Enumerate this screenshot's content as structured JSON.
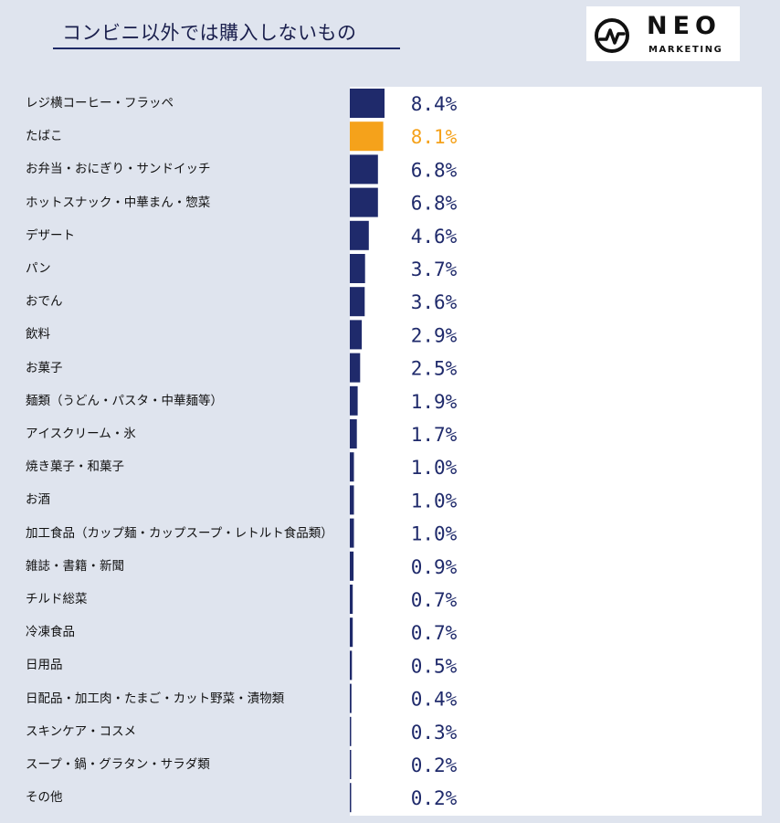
{
  "title": "コンビニ以外では購入しないもの",
  "logo": {
    "primary": "NEO",
    "secondary": "MARKETING"
  },
  "colors": {
    "bar": "#1f2a6b",
    "highlight": "#f5a21b",
    "label": "#1f2a6b",
    "highlight_label": "#f5a21b"
  },
  "chart_data": {
    "type": "bar",
    "orientation": "horizontal",
    "title": "コンビニ以外では購入しないもの",
    "value_suffix": "%",
    "highlight_index": 1,
    "xlim": [
      0,
      8.4
    ],
    "categories": [
      "レジ横コーヒー・フラッペ",
      "たばこ",
      "お弁当・おにぎり・サンドイッチ",
      "ホットスナック・中華まん・惣菜",
      "デザート",
      "パン",
      "おでん",
      "飲料",
      "お菓子",
      "麺類（うどん・パスタ・中華麺等）",
      "アイスクリーム・氷",
      "焼き菓子・和菓子",
      "お酒",
      "加工食品（カップ麺・カップスープ・レトルト食品類）",
      "雑誌・書籍・新聞",
      "チルド総菜",
      "冷凍食品",
      "日用品",
      "日配品・加工肉・たまご・カット野菜・漬物類",
      "スキンケア・コスメ",
      "スープ・鍋・グラタン・サラダ類",
      "その他"
    ],
    "values": [
      8.4,
      8.1,
      6.8,
      6.8,
      4.6,
      3.7,
      3.6,
      2.9,
      2.5,
      1.9,
      1.7,
      1.0,
      1.0,
      1.0,
      0.9,
      0.7,
      0.7,
      0.5,
      0.4,
      0.3,
      0.2,
      0.2
    ],
    "value_labels": [
      "8.4%",
      "8.1%",
      "6.8%",
      "6.8%",
      "4.6%",
      "3.7%",
      "3.6%",
      "2.9%",
      "2.5%",
      "1.9%",
      "1.7%",
      "1.0%",
      "1.0%",
      "1.0%",
      "0.9%",
      "0.7%",
      "0.7%",
      "0.5%",
      "0.4%",
      "0.3%",
      "0.2%",
      "0.2%"
    ]
  }
}
